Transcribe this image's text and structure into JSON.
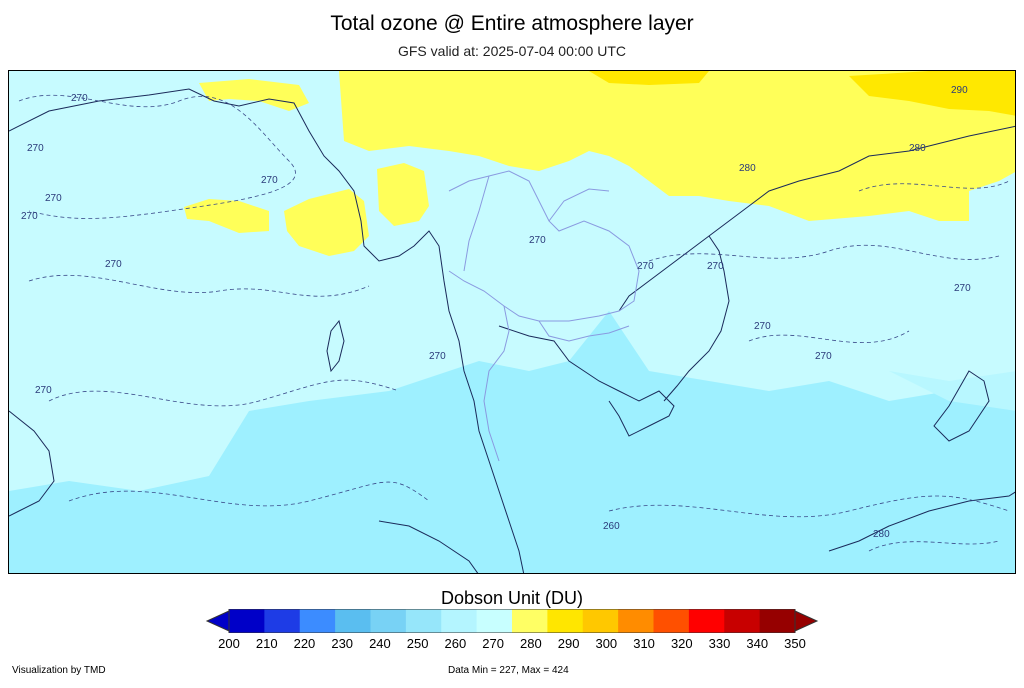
{
  "header": {
    "title": "Total ozone @ Entire atmosphere layer",
    "subtitle": "GFS valid at: 2025-07-04 00:00 UTC"
  },
  "map": {
    "contour_labels": [
      "270",
      "270",
      "270",
      "270",
      "270",
      "270",
      "270",
      "270",
      "270",
      "270",
      "270",
      "270",
      "270",
      "270",
      "280",
      "280",
      "290",
      "260",
      "280"
    ],
    "colors": {
      "background_265_270": "#c7fbff",
      "band_260_265": "#9ef0ff",
      "band_280_290": "#ffff59",
      "band_290_300": "#ffe800",
      "coastline": "#1a2a5a",
      "borders": "#8a9ae0"
    }
  },
  "legend": {
    "title": "Dobson Unit (DU)",
    "ticks": [
      "200",
      "210",
      "220",
      "230",
      "240",
      "250",
      "260",
      "270",
      "280",
      "290",
      "300",
      "310",
      "320",
      "330",
      "340",
      "350"
    ],
    "colors": [
      "#0000c8",
      "#1e3ce6",
      "#3c8cff",
      "#5abef0",
      "#78d2f5",
      "#96e6fa",
      "#b4f5ff",
      "#c8ffff",
      "#ffff64",
      "#ffe600",
      "#ffc800",
      "#ff8c00",
      "#ff5000",
      "#ff0000",
      "#c80000",
      "#960000"
    ],
    "under_color": "#0000c8",
    "over_color": "#960000"
  },
  "footer": {
    "credit": "Visualization by TMD",
    "data_minmax": "Data Min = 227, Max = 424"
  }
}
